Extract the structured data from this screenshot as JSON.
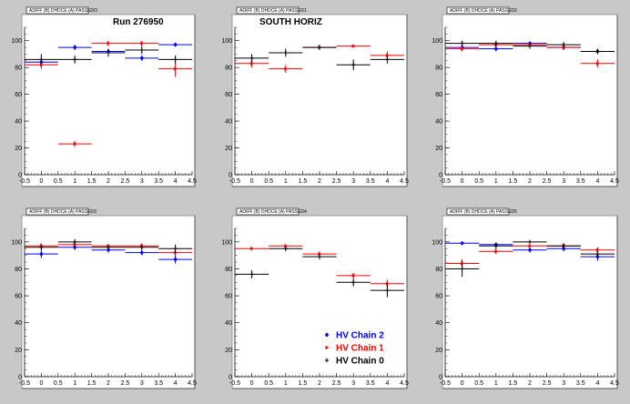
{
  "chart_data": [
    {
      "type": "scatter",
      "title": "ADIFF (B) DHDCE (A) PASSEDO",
      "annotation": "Run 276950",
      "xlim": [
        -0.5,
        4.5
      ],
      "ylim": [
        0,
        110
      ],
      "xticks": [
        "-0.5",
        "0",
        "0.5",
        "1",
        "1.5",
        "2",
        "2.5",
        "3",
        "3.5",
        "4",
        "4.5"
      ],
      "yticks": [
        "0",
        "20",
        "40",
        "60",
        "80",
        "100"
      ],
      "grid": false,
      "series": [
        {
          "color": "#0000ff",
          "marker": "diamond",
          "x": [
            0,
            1,
            2,
            3,
            4
          ],
          "y": [
            84,
            95,
            92,
            87,
            97
          ],
          "yerr": [
            3,
            2,
            2,
            2,
            1
          ]
        },
        {
          "color": "#ff0000",
          "marker": "triangle",
          "x": [
            0,
            1,
            2,
            3,
            4
          ],
          "y": [
            82,
            23,
            98,
            98,
            79
          ],
          "yerr": [
            3,
            2,
            2,
            2,
            6
          ]
        },
        {
          "color": "#000000",
          "marker": "cross",
          "x": [
            0,
            1,
            2,
            3,
            4
          ],
          "y": [
            86,
            86,
            91,
            93,
            86
          ],
          "yerr": [
            4,
            3,
            3,
            3,
            3
          ]
        }
      ]
    },
    {
      "type": "scatter",
      "title": "ADIFF (B) DHDCE (A) PASSED1",
      "annotation": "SOUTH HORIZ",
      "xlim": [
        -0.5,
        4.5
      ],
      "ylim": [
        0,
        110
      ],
      "xticks": [
        "-0.5",
        "0",
        "0.5",
        "1",
        "1.5",
        "2",
        "2.5",
        "3",
        "3.5",
        "4",
        "4.5"
      ],
      "yticks": [
        "0",
        "20",
        "40",
        "60",
        "80",
        "100"
      ],
      "grid": false,
      "series": [
        {
          "color": "#0000ff",
          "marker": "diamond",
          "x": [],
          "y": [],
          "yerr": []
        },
        {
          "color": "#ff0000",
          "marker": "triangle",
          "x": [
            0,
            1,
            2,
            3,
            4
          ],
          "y": [
            83,
            79,
            95,
            96,
            89
          ],
          "yerr": [
            3,
            3,
            2,
            1,
            3
          ]
        },
        {
          "color": "#000000",
          "marker": "cross",
          "x": [
            0,
            1,
            2,
            3,
            4
          ],
          "y": [
            87,
            91,
            95,
            82,
            86
          ],
          "yerr": [
            3,
            3,
            2,
            4,
            3
          ]
        }
      ]
    },
    {
      "type": "scatter",
      "title": "ADIFF (B) DHDCE (A) PASSED2",
      "xlim": [
        -0.5,
        4.5
      ],
      "ylim": [
        0,
        110
      ],
      "xticks": [
        "-0.5",
        "0",
        "0.5",
        "1",
        "1.5",
        "2",
        "2.5",
        "3",
        "3.5",
        "4",
        "4.5"
      ],
      "yticks": [
        "0",
        "20",
        "40",
        "60",
        "80",
        "100"
      ],
      "grid": false,
      "series": [
        {
          "color": "#0000ff",
          "marker": "diamond",
          "x": [
            0,
            1,
            2,
            3,
            4
          ],
          "y": [
            95,
            94,
            98,
            95,
            92
          ],
          "yerr": [
            2,
            2,
            1,
            2,
            2
          ]
        },
        {
          "color": "#ff0000",
          "marker": "triangle",
          "x": [
            0,
            1,
            2,
            3,
            4
          ],
          "y": [
            94,
            97,
            97,
            95,
            83
          ],
          "yerr": [
            2,
            2,
            1,
            2,
            3
          ]
        },
        {
          "color": "#000000",
          "marker": "cross",
          "x": [
            0,
            1,
            2,
            3,
            4
          ],
          "y": [
            98,
            98,
            96,
            97,
            92
          ],
          "yerr": [
            2,
            2,
            2,
            2,
            2
          ]
        }
      ]
    },
    {
      "type": "scatter",
      "title": "ADIFF (B) DHDCE (A) PASSED3",
      "xlim": [
        -0.5,
        4.5
      ],
      "ylim": [
        0,
        110
      ],
      "xticks": [
        "-0.5",
        "0",
        "0.5",
        "1",
        "1.5",
        "2",
        "2.5",
        "3",
        "3.5",
        "4",
        "4.5"
      ],
      "yticks": [
        "0",
        "20",
        "40",
        "60",
        "80",
        "100"
      ],
      "grid": false,
      "series": [
        {
          "color": "#0000ff",
          "marker": "diamond",
          "x": [
            0,
            1,
            2,
            3,
            4
          ],
          "y": [
            91,
            96,
            94,
            92,
            87
          ],
          "yerr": [
            3,
            2,
            2,
            2,
            3
          ]
        },
        {
          "color": "#ff0000",
          "marker": "triangle",
          "x": [
            0,
            1,
            2,
            3,
            4
          ],
          "y": [
            97,
            98,
            97,
            97,
            92
          ],
          "yerr": [
            2,
            1,
            1,
            2,
            2
          ]
        },
        {
          "color": "#000000",
          "marker": "cross",
          "x": [
            0,
            1,
            2,
            3,
            4
          ],
          "y": [
            96,
            100,
            96,
            96,
            95
          ],
          "yerr": [
            2,
            2,
            2,
            2,
            3
          ]
        }
      ]
    },
    {
      "type": "scatter",
      "title": "ADIFF (B) DHDCE (A) PASSED4",
      "xlim": [
        -0.5,
        4.5
      ],
      "ylim": [
        0,
        110
      ],
      "xticks": [
        "-0.5",
        "0",
        "0.5",
        "1",
        "1.5",
        "2",
        "2.5",
        "3",
        "3.5",
        "4",
        "4.5"
      ],
      "yticks": [
        "0",
        "20",
        "40",
        "60",
        "80",
        "100"
      ],
      "grid": false,
      "legend": {
        "position": "bottom-right",
        "entries": [
          {
            "label": "HV Chain 2",
            "color": "#0000ff",
            "marker": "diamond"
          },
          {
            "label": "HV Chain 1",
            "color": "#ff0000",
            "marker": "triangle"
          },
          {
            "label": "HV Chain 0",
            "color": "#000000",
            "marker": "cross"
          }
        ]
      },
      "series": [
        {
          "name": "HV Chain 2",
          "color": "#0000ff",
          "marker": "diamond",
          "x": [],
          "y": [],
          "yerr": []
        },
        {
          "name": "HV Chain 1",
          "color": "#ff0000",
          "marker": "triangle",
          "x": [
            0,
            1,
            2,
            3,
            4
          ],
          "y": [
            95,
            97,
            91,
            75,
            69
          ],
          "yerr": [
            1,
            1,
            2,
            2,
            3
          ]
        },
        {
          "name": "HV Chain 0",
          "color": "#000000",
          "marker": "cross",
          "x": [
            0,
            1,
            2,
            3,
            4
          ],
          "y": [
            76,
            95,
            89,
            70,
            64
          ],
          "yerr": [
            3,
            2,
            2,
            3,
            5
          ]
        }
      ]
    },
    {
      "type": "scatter",
      "title": "ADIFF (B) DHDCE (A) PASSED5",
      "xlim": [
        -0.5,
        4.5
      ],
      "ylim": [
        0,
        110
      ],
      "xticks": [
        "-0.5",
        "0",
        "0.5",
        "1",
        "1.5",
        "2",
        "2.5",
        "3",
        "3.5",
        "4",
        "4.5"
      ],
      "yticks": [
        "0",
        "20",
        "40",
        "60",
        "80",
        "100"
      ],
      "grid": false,
      "series": [
        {
          "color": "#0000ff",
          "marker": "diamond",
          "x": [
            0,
            1,
            2,
            3,
            4
          ],
          "y": [
            99,
            98,
            94,
            95,
            89
          ],
          "yerr": [
            1,
            1,
            2,
            2,
            3
          ]
        },
        {
          "color": "#ff0000",
          "marker": "triangle",
          "x": [
            0,
            1,
            2,
            3,
            4
          ],
          "y": [
            84,
            93,
            97,
            97,
            94
          ],
          "yerr": [
            3,
            2,
            1,
            2,
            2
          ]
        },
        {
          "color": "#000000",
          "marker": "cross",
          "x": [
            0,
            1,
            2,
            3,
            4
          ],
          "y": [
            80,
            97,
            100,
            97,
            91
          ],
          "yerr": [
            6,
            2,
            1,
            2,
            2
          ]
        }
      ]
    }
  ]
}
